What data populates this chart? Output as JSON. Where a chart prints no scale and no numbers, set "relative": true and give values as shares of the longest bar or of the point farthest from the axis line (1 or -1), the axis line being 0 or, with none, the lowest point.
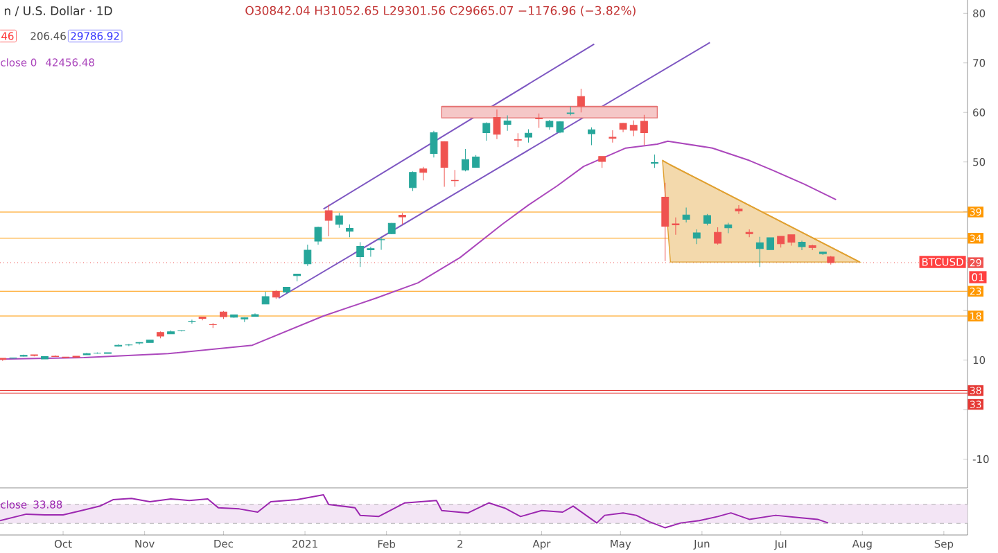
{
  "chart_data": [
    {
      "type": "candlestick",
      "x": [
        "2020-09-08",
        "2020-09-12",
        "2020-09-16",
        "2020-09-20",
        "2020-09-24",
        "2020-09-28",
        "2020-10-02",
        "2020-10-06",
        "2020-10-10",
        "2020-10-14",
        "2020-10-18",
        "2020-10-22",
        "2020-10-26",
        "2020-10-30",
        "2020-11-03",
        "2020-11-07",
        "2020-11-11",
        "2020-11-15",
        "2020-11-19",
        "2020-11-23",
        "2020-11-27",
        "2020-12-01",
        "2020-12-05",
        "2020-12-09",
        "2020-12-13",
        "2020-12-17",
        "2020-12-21",
        "2020-12-25",
        "2020-12-29",
        "2021-01-02",
        "2021-01-06",
        "2021-01-10",
        "2021-01-14",
        "2021-01-18",
        "2021-01-22",
        "2021-01-26",
        "2021-01-30",
        "2021-02-03",
        "2021-02-07",
        "2021-02-11",
        "2021-02-15",
        "2021-02-19",
        "2021-02-23",
        "2021-02-27",
        "2021-03-03",
        "2021-03-07",
        "2021-03-11",
        "2021-03-15",
        "2021-03-19",
        "2021-03-23",
        "2021-03-27",
        "2021-03-31",
        "2021-04-04",
        "2021-04-08",
        "2021-04-12",
        "2021-04-16",
        "2021-04-20",
        "2021-04-24",
        "2021-04-28",
        "2021-05-02",
        "2021-05-06",
        "2021-05-10",
        "2021-05-14",
        "2021-05-18",
        "2021-05-22",
        "2021-05-26",
        "2021-05-30",
        "2021-06-03",
        "2021-06-07",
        "2021-06-11",
        "2021-06-15",
        "2021-06-19",
        "2021-06-23",
        "2021-06-27",
        "2021-07-01",
        "2021-07-05",
        "2021-07-09",
        "2021-07-13",
        "2021-07-17",
        "2021-07-20"
      ],
      "ohlc": [
        [
          10.37,
          10.44,
          9.85,
          10.13
        ],
        [
          10.39,
          10.48,
          10.26,
          10.44
        ],
        [
          10.78,
          11.1,
          10.68,
          10.95
        ],
        [
          11.08,
          11.09,
          10.76,
          10.92
        ],
        [
          10.23,
          10.77,
          10.2,
          10.73
        ],
        [
          10.78,
          10.96,
          10.69,
          10.7
        ],
        [
          10.62,
          10.66,
          10.38,
          10.55
        ],
        [
          10.79,
          10.8,
          10.53,
          10.59
        ],
        [
          11.06,
          11.49,
          11.06,
          11.3
        ],
        [
          11.42,
          11.55,
          11.28,
          11.43
        ],
        [
          11.36,
          11.49,
          11.34,
          11.48
        ],
        [
          12.8,
          13.2,
          12.7,
          12.98
        ],
        [
          13.04,
          13.25,
          12.8,
          13.07
        ],
        [
          13.45,
          13.66,
          13.13,
          13.56
        ],
        [
          13.55,
          14.06,
          13.53,
          14.02
        ],
        [
          15.58,
          15.77,
          14.4,
          14.83
        ],
        [
          15.3,
          15.98,
          15.28,
          15.7
        ],
        [
          15.96,
          16,
          15.8,
          15.97
        ],
        [
          17.8,
          18.17,
          17.35,
          17.85
        ],
        [
          18.68,
          18.77,
          18.02,
          18.4
        ],
        [
          17.16,
          17.46,
          16.5,
          17.14
        ],
        [
          19.7,
          19.92,
          18.3,
          18.77
        ],
        [
          18.65,
          19.18,
          18.53,
          19.15
        ],
        [
          18.32,
          18.64,
          17.66,
          18.56
        ],
        [
          18.82,
          19.42,
          18.8,
          19.17
        ],
        [
          21.31,
          23.78,
          21.25,
          22.82
        ],
        [
          23.85,
          24.1,
          22.35,
          22.72
        ],
        [
          23.73,
          24.79,
          23.44,
          24.7
        ],
        [
          27.04,
          27.38,
          25.88,
          27.37
        ],
        [
          29.42,
          33.3,
          29,
          32.2
        ],
        [
          34,
          36.94,
          33.3,
          36.8
        ],
        [
          40.15,
          41.35,
          35,
          38.2
        ],
        [
          37.4,
          39.7,
          36.7,
          39.1
        ],
        [
          36,
          37.4,
          34.8,
          36.6
        ],
        [
          30.85,
          33.8,
          28.8,
          32.95
        ],
        [
          32.25,
          32.9,
          30.85,
          32.5
        ],
        [
          34.3,
          34.8,
          32.25,
          34.32
        ],
        [
          35.5,
          37.7,
          35.4,
          37.6
        ],
        [
          39.25,
          39.7,
          37.4,
          38.9
        ],
        [
          44.8,
          48.1,
          44.1,
          47.9
        ],
        [
          48.6,
          49,
          46.3,
          47.9
        ],
        [
          51.7,
          56.3,
          50.9,
          55.9
        ],
        [
          54.1,
          54.2,
          45,
          48.9
        ],
        [
          46.3,
          48.4,
          45,
          46.2
        ],
        [
          48.4,
          52.6,
          48.1,
          50.5
        ],
        [
          48.9,
          51.4,
          48.9,
          51
        ],
        [
          55.9,
          58,
          54.3,
          57.8
        ],
        [
          59,
          60.6,
          54.6,
          55.6
        ],
        [
          57.6,
          59.4,
          56.3,
          58.3
        ],
        [
          54.5,
          55.8,
          53,
          54.4
        ],
        [
          55,
          56.6,
          53.9,
          55.8
        ],
        [
          58.8,
          59.8,
          56.9,
          58.7
        ],
        [
          57.1,
          58.5,
          56.5,
          58.2
        ],
        [
          56,
          58.2,
          55.8,
          58.1
        ],
        [
          59.8,
          61.2,
          59.4,
          59.9
        ],
        [
          63.2,
          64.8,
          60,
          61.3
        ],
        [
          55.7,
          57,
          53.4,
          56.5
        ],
        [
          51.1,
          51.2,
          48.8,
          50.1
        ],
        [
          55,
          56.4,
          53.9,
          54.8
        ],
        [
          57.8,
          57.9,
          56,
          56.6
        ],
        [
          57.4,
          58.4,
          55.2,
          56.4
        ],
        [
          58.2,
          59.5,
          53.4,
          55.9
        ],
        [
          49.7,
          51.5,
          48.8,
          49.9
        ],
        [
          42.9,
          45.8,
          30,
          37
        ],
        [
          37.5,
          38.8,
          35.3,
          37.3
        ],
        [
          38.4,
          40.8,
          37.8,
          39.3
        ],
        [
          34.6,
          36.4,
          33.4,
          35.7
        ],
        [
          37.6,
          39.5,
          37.2,
          39.2
        ],
        [
          35.8,
          36.8,
          33.3,
          33.6
        ],
        [
          36.7,
          37.7,
          35.6,
          37.3
        ],
        [
          40.5,
          41.3,
          39.5,
          40.1
        ],
        [
          35.8,
          36.4,
          34.8,
          35.5
        ],
        [
          32.5,
          34.9,
          28.8,
          33.7
        ],
        [
          32.3,
          34.7,
          32.3,
          34.7
        ],
        [
          35,
          35,
          32.7,
          33.5
        ],
        [
          35.3,
          35.3,
          33.1,
          33.8
        ],
        [
          32.9,
          34.1,
          32.2,
          33.8
        ],
        [
          33.1,
          33.3,
          32.2,
          32.7
        ],
        [
          31.5,
          31.9,
          31.2,
          31.8
        ],
        [
          30.84204,
          31.05265,
          29.30156,
          29.66507
        ]
      ],
      "colors": [
        "#ef5350",
        "#26a69a",
        "#26a69a",
        "#ef5350",
        "#26a69a",
        "#ef5350",
        "#ef5350",
        "#ef5350",
        "#26a69a",
        "#26a69a",
        "#26a69a",
        "#26a69a",
        "#26a69a",
        "#26a69a",
        "#26a69a",
        "#ef5350",
        "#26a69a",
        "#26a69a",
        "#26a69a",
        "#ef5350",
        "#ef5350",
        "#ef5350",
        "#26a69a",
        "#26a69a",
        "#26a69a",
        "#26a69a",
        "#ef5350",
        "#26a69a",
        "#26a69a",
        "#26a69a",
        "#26a69a",
        "#ef5350",
        "#26a69a",
        "#26a69a",
        "#26a69a",
        "#26a69a",
        "#26a69a",
        "#26a69a",
        "#ef5350",
        "#26a69a",
        "#ef5350",
        "#26a69a",
        "#ef5350",
        "#ef5350",
        "#26a69a",
        "#26a69a",
        "#26a69a",
        "#ef5350",
        "#26a69a",
        "#ef5350",
        "#26a69a",
        "#ef5350",
        "#26a69a",
        "#26a69a",
        "#26a69a",
        "#ef5350",
        "#26a69a",
        "#ef5350",
        "#ef5350",
        "#ef5350",
        "#ef5350",
        "#ef5350",
        "#26a69a",
        "#ef5350",
        "#ef5350",
        "#26a69a",
        "#26a69a",
        "#26a69a",
        "#ef5350",
        "#26a69a",
        "#ef5350",
        "#ef5350",
        "#26a69a",
        "#26a69a",
        "#ef5350",
        "#ef5350",
        "#26a69a",
        "#ef5350",
        "#26a69a",
        "#ef5350"
      ],
      "series": [
        {
          "type": "line",
          "name": "close 0",
          "color": "#ab47bc",
          "x": [
            "2020-09-07",
            "2020-10-09",
            "2020-11-10",
            "2020-12-12",
            "2021-01-08",
            "2021-01-28",
            "2021-02-13",
            "2021-03-01",
            "2021-03-17",
            "2021-03-27",
            "2021-04-07",
            "2021-04-17",
            "2021-05-03",
            "2021-05-15",
            "2021-05-19",
            "2021-06-05",
            "2021-06-19",
            "2021-06-28",
            "2021-07-10",
            "2021-07-22"
          ],
          "values": [
            10.2,
            10.5,
            11.3,
            13,
            18.9,
            22.5,
            25.6,
            30.7,
            37.4,
            41.3,
            45.2,
            49.1,
            52.8,
            53.6,
            54.2,
            52.8,
            50.3,
            48.3,
            45.5,
            42.4
          ]
        },
        {
          "type": "line",
          "color": "#7e57c2",
          "x": [
            "2021-01-08",
            "2021-04-21"
          ],
          "values": [
            40.5,
            73.8
          ]
        },
        {
          "type": "line",
          "color": "#7e57c2",
          "x": [
            "2020-12-22",
            "2021-06-04"
          ],
          "values": [
            22.5,
            74.1
          ]
        },
        {
          "type": "line",
          "color": "#e57373",
          "x": [
            "2021-02-22",
            "2021-05-15"
          ],
          "values": [
            61.2,
            61.2
          ],
          "lower": [
            58.9,
            58.9
          ],
          "upper": [
            61.2,
            61.2
          ]
        },
        {
          "type": "line",
          "color": "#e0a030",
          "x": [
            "2021-05-17",
            "2021-05-20",
            "2021-07-31"
          ],
          "values": [
            50.3,
            49.4,
            29.8
          ],
          "lower": [
            50.3,
            29.8,
            29.8
          ],
          "upper": [
            50.3,
            49.4,
            29.8
          ]
        }
      ],
      "xlim": [
        "2020-09-07",
        "2021-09-10"
      ],
      "ylim": [
        -15.8,
        82.7
      ],
      "yticks": [
        80,
        70,
        60,
        50,
        {
          "value": 40,
          "label": null
        },
        {
          "value": 30,
          "label": null
        },
        {
          "value": 20,
          "label": null
        },
        10,
        {
          "value": 0,
          "label": null
        },
        -10
      ],
      "tick_labels": "y",
      "ref_lines": [
        {
          "axis": "y",
          "value": 39.9,
          "color": "#ff9800"
        },
        {
          "axis": "y",
          "value": 34.6,
          "color": "#ff9800"
        },
        {
          "axis": "y",
          "value": 29.66507,
          "color": "#ef5350",
          "line_style": "dotted"
        },
        {
          "axis": "y",
          "value": 23.9,
          "color": "#ff9800"
        },
        {
          "axis": "y",
          "value": 18.9,
          "color": "#ff9800"
        },
        {
          "axis": "y",
          "value": 3.85,
          "color": "#e53935"
        },
        {
          "axis": "y",
          "value": 3.35,
          "color": "#e53935"
        }
      ],
      "annotations": [
        "n / U.S. Dollar · 1D",
        "O30842.04 H31052.65 L29301.56 C29665.07 −1176.96 (−3.82%)",
        "46",
        "206.46",
        "29786.92",
        "42456.48",
        "BTCUSD",
        "01",
        "39",
        "34",
        "29",
        "23",
        "18",
        "38",
        "33"
      ]
    },
    {
      "type": "line",
      "relative": true,
      "series": [
        {
          "name": "close",
          "color": "#9c27b0",
          "x": [
            "2020-09-07",
            "2020-09-17",
            "2020-09-24",
            "2020-10-01",
            "2020-10-08",
            "2020-10-15",
            "2020-10-20",
            "2020-10-27",
            "2020-11-03",
            "2020-11-11",
            "2020-11-18",
            "2020-11-25",
            "2020-11-29",
            "2020-12-07",
            "2020-12-14",
            "2020-12-19",
            "2020-12-29",
            "2021-01-08",
            "2021-01-10",
            "2021-01-20",
            "2021-01-22",
            "2021-01-29",
            "2021-02-08",
            "2021-02-20",
            "2021-02-22",
            "2021-03-04",
            "2021-03-12",
            "2021-03-18",
            "2021-03-24",
            "2021-04-01",
            "2021-04-09",
            "2021-04-13",
            "2021-04-22",
            "2021-04-25",
            "2021-05-02",
            "2021-05-07",
            "2021-05-12",
            "2021-05-18",
            "2021-05-24",
            "2021-05-31",
            "2021-06-07",
            "2021-06-12",
            "2021-06-19",
            "2021-06-29",
            "2021-07-08",
            "2021-07-15",
            "2021-07-19"
          ],
          "values": [
            0.36,
            0.52,
            0.5,
            0.5,
            0.61,
            0.72,
            0.88,
            0.91,
            0.83,
            0.9,
            0.86,
            0.9,
            0.68,
            0.65,
            0.57,
            0.83,
            0.88,
            1,
            0.76,
            0.68,
            0.49,
            0.46,
            0.8,
            0.86,
            0.61,
            0.55,
            0.8,
            0.67,
            0.46,
            0.61,
            0.57,
            0.72,
            0.3,
            0.49,
            0.55,
            0.49,
            0.33,
            0.18,
            0.3,
            0.36,
            0.46,
            0.55,
            0.39,
            0.49,
            0.43,
            0.39,
            0.3
          ]
        }
      ],
      "bands": [
        {
          "axis": "y",
          "from": 0.29,
          "to": 0.77,
          "color": "#f3e5f5"
        }
      ],
      "ref_lines": [
        {
          "axis": "y",
          "value": 0.29,
          "color": "#b2b2b2",
          "line_style": "dashed"
        },
        {
          "axis": "y",
          "value": 0.77,
          "color": "#b2b2b2",
          "line_style": "dashed"
        }
      ],
      "xlim": [
        "2020-09-07",
        "2021-09-10"
      ],
      "xticks": [
        {
          "value": "2020-10-01",
          "label": "Oct"
        },
        {
          "value": "2020-11-01",
          "label": "Nov"
        },
        {
          "value": "2020-12-01",
          "label": "Dec"
        },
        {
          "value": "2021-01-01",
          "label": "2021"
        },
        {
          "value": "2021-02-01",
          "label": "Feb"
        },
        {
          "value": "2021-03-01",
          "label": "2"
        },
        {
          "value": "2021-04-01",
          "label": "Apr"
        },
        {
          "value": "2021-05-01",
          "label": "May"
        },
        {
          "value": "2021-06-01",
          "label": "Jun"
        },
        {
          "value": "2021-07-01",
          "label": "Jul"
        },
        {
          "value": "2021-08-01",
          "label": "Aug"
        },
        {
          "value": "2021-09-01",
          "label": "Sep"
        }
      ],
      "tick_labels": "x",
      "annotations": [
        "33.88"
      ]
    }
  ]
}
